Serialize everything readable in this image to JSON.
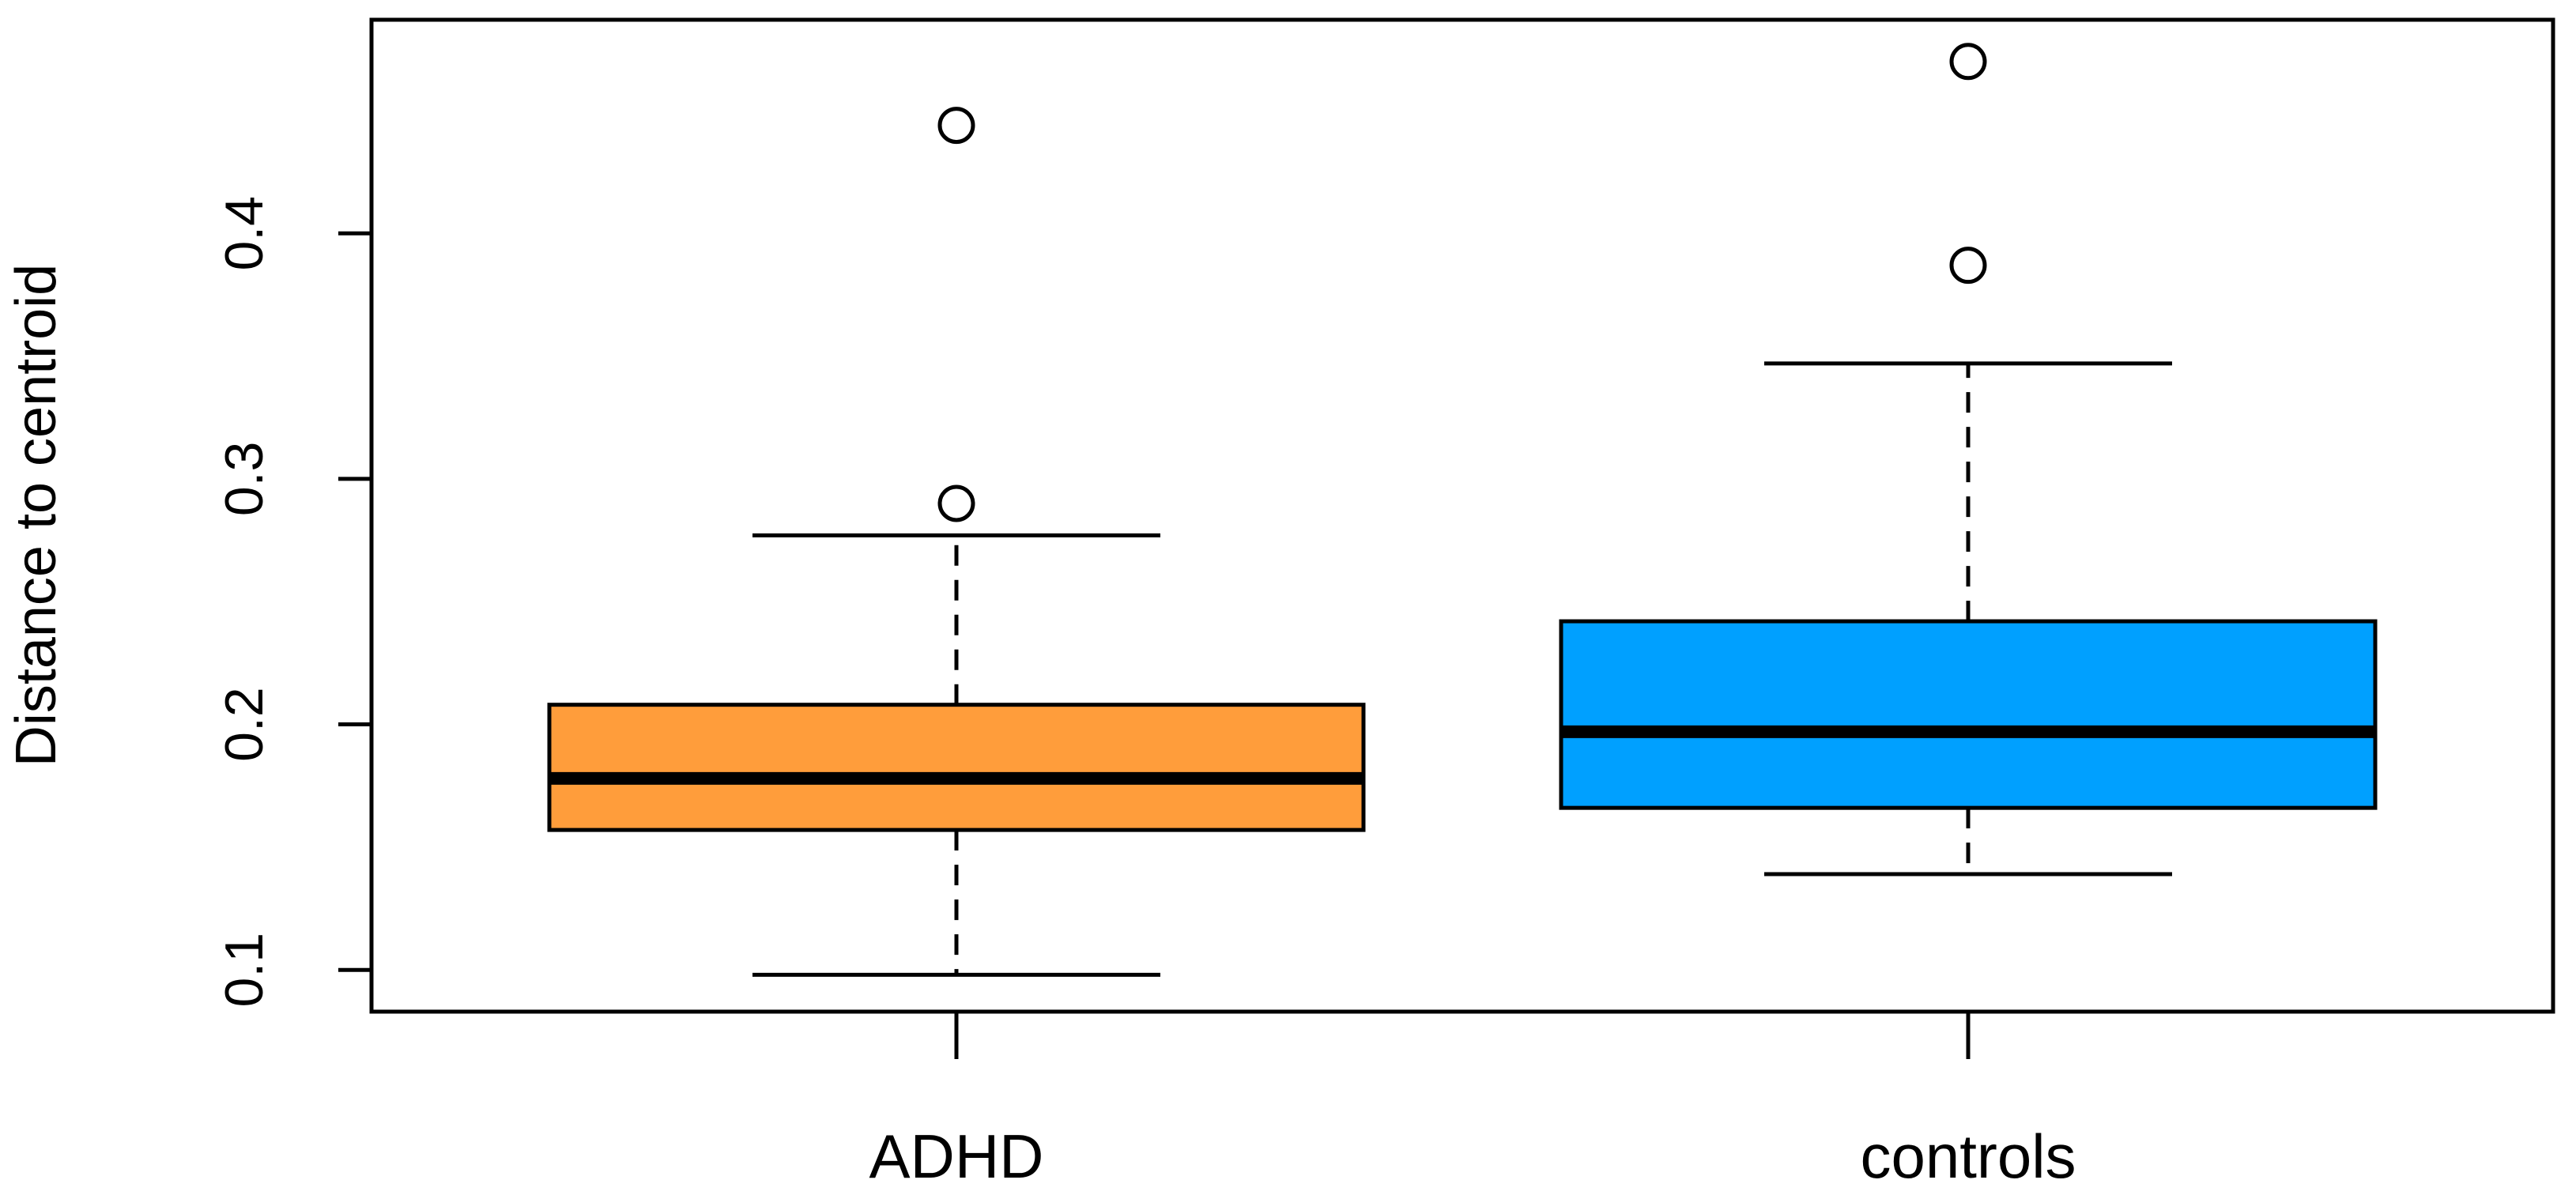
{
  "chart_data": {
    "type": "boxplot",
    "title": "",
    "xlabel": "",
    "ylabel": "Distance to centroid",
    "ylim": [
      0.083,
      0.487
    ],
    "yticks": [
      0.1,
      0.2,
      0.3,
      0.4
    ],
    "ytick_labels": [
      "0.1",
      "0.2",
      "0.3",
      "0.4"
    ],
    "grid": false,
    "categories": [
      "ADHD",
      "controls"
    ],
    "boxes": [
      {
        "category": "ADHD",
        "color": "#FF9D3B",
        "whisker_low": 0.098,
        "q1": 0.157,
        "median": 0.178,
        "q3": 0.208,
        "whisker_high": 0.277,
        "outliers": [
          0.29,
          0.444
        ]
      },
      {
        "category": "controls",
        "color": "#00A0FF",
        "whisker_low": 0.139,
        "q1": 0.166,
        "median": 0.197,
        "q3": 0.242,
        "whisker_high": 0.347,
        "outliers": [
          0.387,
          0.47
        ]
      }
    ]
  }
}
